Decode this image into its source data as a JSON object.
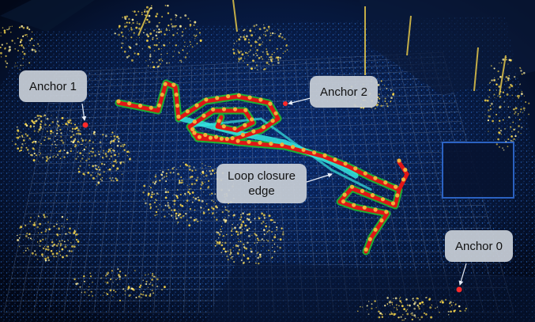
{
  "colors": {
    "background": "#020818",
    "grid": "#6f86a8",
    "point_cloud_blue": "#1d5fc4",
    "vegetation_yellow": "#f2d24a",
    "trajectory_red": "#e01616",
    "trajectory_green": "#22c52b",
    "loop_closure_cyan": "#35e6e0",
    "pose_node_orange": "#f3b03a",
    "callout_fill": "#c6ccd4"
  },
  "labels": {
    "anchor_1": "Anchor 1",
    "anchor_2": "Anchor 2",
    "anchor_0": "Anchor 0",
    "loop_closure_line1": "Loop closure",
    "loop_closure_line2": "edge"
  }
}
